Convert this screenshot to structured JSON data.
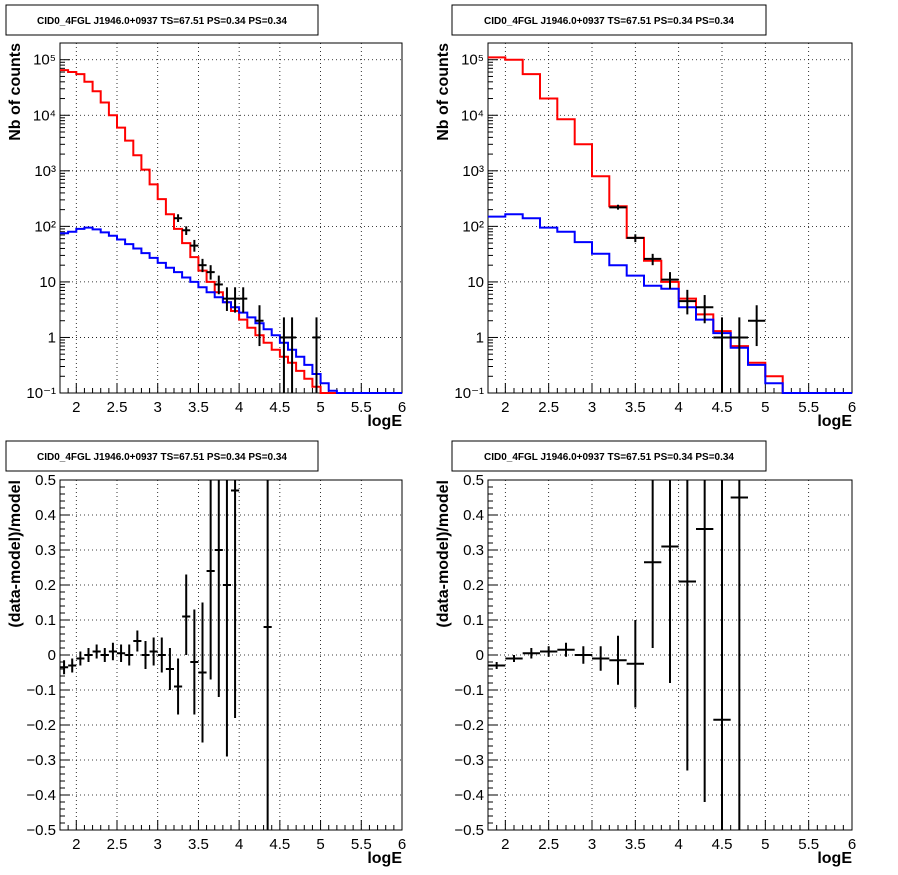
{
  "chart_data": [
    {
      "type": "histogram",
      "title": "CID0_4FGL J1946.0+0937 TS=67.51 PS=0.34 PS=0.34",
      "xlabel": "logE",
      "ylabel": "Nb of counts",
      "xlim": [
        1.8,
        6.0
      ],
      "ylim": [
        0.1,
        200000
      ],
      "yscale": "log",
      "grid": true,
      "xticks": [
        "2",
        "2.5",
        "3",
        "3.5",
        "4",
        "4.5",
        "5",
        "5.5",
        "6"
      ],
      "yticks": [
        "10^-1",
        "1",
        "10",
        "10^2",
        "10^3",
        "10^4",
        "10^5"
      ],
      "bin_edges": [
        1.8,
        1.9,
        2.0,
        2.1,
        2.2,
        2.3,
        2.4,
        2.5,
        2.6,
        2.7,
        2.8,
        2.9,
        3.0,
        3.1,
        3.2,
        3.3,
        3.4,
        3.5,
        3.6,
        3.7,
        3.8,
        3.9,
        4.0,
        4.1,
        4.2,
        4.3,
        4.4,
        4.5,
        4.6,
        4.7,
        4.8,
        4.9,
        5.0,
        5.1,
        5.2,
        5.3,
        5.4,
        5.5,
        5.6,
        5.7,
        5.8,
        5.9,
        6.0
      ],
      "series": [
        {
          "color": "#ff0000",
          "style": "step",
          "values": [
            65000,
            60000,
            55000,
            40000,
            27000,
            17000,
            10000,
            6000,
            3500,
            1900,
            1050,
            570,
            310,
            165,
            90,
            50,
            28,
            16,
            10,
            6.5,
            4.3,
            3.0,
            2.1,
            1.5,
            1.1,
            0.8,
            0.6,
            0.45,
            0.35,
            0.25,
            0.18,
            0.13,
            0.1,
            0.1,
            0.1,
            0.1,
            0.1,
            0.1,
            0.1,
            0.1,
            0.1,
            0.1
          ]
        },
        {
          "color": "#0000ff",
          "style": "step",
          "values": [
            75,
            80,
            90,
            95,
            88,
            78,
            68,
            58,
            48,
            40,
            33,
            27,
            22,
            18,
            15,
            12,
            10,
            8,
            6.5,
            5.3,
            4.3,
            3.5,
            2.8,
            2.3,
            1.8,
            1.4,
            1.1,
            0.8,
            0.6,
            0.45,
            0.32,
            0.22,
            0.15,
            0.11,
            0.1,
            0.1,
            0.1,
            0.1,
            0.1,
            0.1,
            0.1,
            0.1
          ]
        },
        {
          "color": "#000000",
          "style": "errorbars",
          "points": [
            {
              "x": 3.25,
              "y": 140,
              "ylo": 120,
              "yhi": 165
            },
            {
              "x": 3.35,
              "y": 85,
              "ylo": 70,
              "yhi": 100
            },
            {
              "x": 3.45,
              "y": 45,
              "ylo": 35,
              "yhi": 57
            },
            {
              "x": 3.55,
              "y": 20,
              "ylo": 15,
              "yhi": 26
            },
            {
              "x": 3.65,
              "y": 15,
              "ylo": 11,
              "yhi": 20
            },
            {
              "x": 3.75,
              "y": 9,
              "ylo": 6,
              "yhi": 13
            },
            {
              "x": 3.85,
              "y": 5,
              "ylo": 3,
              "yhi": 8
            },
            {
              "x": 3.95,
              "y": 5,
              "ylo": 2.8,
              "yhi": 8
            },
            {
              "x": 4.05,
              "y": 5,
              "ylo": 2.8,
              "yhi": 8
            },
            {
              "x": 4.25,
              "y": 2,
              "ylo": 0.7,
              "yhi": 3.8
            },
            {
              "x": 4.55,
              "y": 1,
              "ylo": 0.1,
              "yhi": 2.3
            },
            {
              "x": 4.65,
              "y": 1,
              "ylo": 0.1,
              "yhi": 2.3
            },
            {
              "x": 4.95,
              "y": 1,
              "ylo": 0.1,
              "yhi": 2.3
            }
          ]
        }
      ]
    },
    {
      "type": "histogram",
      "title": "CID0_4FGL J1946.0+0937 TS=67.51 PS=0.34 PS=0.34",
      "xlabel": "logE",
      "ylabel": "Nb of counts",
      "xlim": [
        1.8,
        6.0
      ],
      "ylim": [
        0.1,
        200000
      ],
      "yscale": "log",
      "grid": true,
      "xticks": [
        "2",
        "2.5",
        "3",
        "3.5",
        "4",
        "4.5",
        "5",
        "5.5",
        "6"
      ],
      "yticks": [
        "10^-1",
        "1",
        "10",
        "10^2",
        "10^3",
        "10^4",
        "10^5"
      ],
      "bin_edges": [
        1.8,
        2.0,
        2.2,
        2.4,
        2.6,
        2.8,
        3.0,
        3.2,
        3.4,
        3.6,
        3.8,
        4.0,
        4.2,
        4.4,
        4.6,
        4.8,
        5.0,
        5.2,
        5.4,
        5.6,
        5.8,
        6.0
      ],
      "series": [
        {
          "color": "#ff0000",
          "style": "step",
          "values": [
            110000,
            100000,
            55000,
            20000,
            8500,
            3000,
            800,
            230,
            62,
            24,
            10,
            5,
            2.6,
            1.3,
            0.7,
            0.35,
            0.2,
            0.1,
            0.1,
            0.1,
            0.1
          ]
        },
        {
          "color": "#0000ff",
          "style": "step",
          "values": [
            150,
            165,
            140,
            95,
            80,
            52,
            32,
            20,
            13,
            8.5,
            7.5,
            3.5,
            2.1,
            1.2,
            0.65,
            0.32,
            0.15,
            0.1,
            0.1,
            0.1,
            0.1
          ]
        },
        {
          "color": "#000000",
          "style": "errorbars",
          "points": [
            {
              "x": 3.3,
              "y": 220,
              "ylo": 200,
              "yhi": 245
            },
            {
              "x": 3.5,
              "y": 62,
              "ylo": 52,
              "yhi": 72
            },
            {
              "x": 3.7,
              "y": 26,
              "ylo": 20,
              "yhi": 32
            },
            {
              "x": 3.9,
              "y": 11,
              "ylo": 7.5,
              "yhi": 15
            },
            {
              "x": 4.1,
              "y": 4.5,
              "ylo": 2.6,
              "yhi": 7.2
            },
            {
              "x": 4.3,
              "y": 3.5,
              "ylo": 1.8,
              "yhi": 5.8
            },
            {
              "x": 4.5,
              "y": 1,
              "ylo": 0.1,
              "yhi": 2.3
            },
            {
              "x": 4.7,
              "y": 1,
              "ylo": 0.1,
              "yhi": 2.3
            },
            {
              "x": 4.9,
              "y": 2,
              "ylo": 0.7,
              "yhi": 3.8
            }
          ]
        }
      ]
    },
    {
      "type": "errorbar",
      "title": "CID0_4FGL J1946.0+0937 TS=67.51 PS=0.34 PS=0.34",
      "xlabel": "logE",
      "ylabel": "(data-model)/model",
      "xlim": [
        1.8,
        6.0
      ],
      "ylim": [
        -0.5,
        0.5
      ],
      "grid": true,
      "xticks": [
        "2",
        "2.5",
        "3",
        "3.5",
        "4",
        "4.5",
        "5",
        "5.5",
        "6"
      ],
      "yticks": [
        "-0.5",
        "-0.4",
        "-0.3",
        "-0.2",
        "-0.1",
        "0",
        "0.1",
        "0.2",
        "0.3",
        "0.4",
        "0.5"
      ],
      "points": [
        {
          "x": 1.85,
          "xerr": 0.05,
          "y": -0.035,
          "ylo": -0.055,
          "yhi": -0.015
        },
        {
          "x": 1.95,
          "xerr": 0.05,
          "y": -0.03,
          "ylo": -0.05,
          "yhi": -0.01
        },
        {
          "x": 2.05,
          "xerr": 0.05,
          "y": -0.01,
          "ylo": -0.03,
          "yhi": 0.01
        },
        {
          "x": 2.15,
          "xerr": 0.05,
          "y": 0.0,
          "ylo": -0.02,
          "yhi": 0.02
        },
        {
          "x": 2.25,
          "xerr": 0.05,
          "y": 0.01,
          "ylo": -0.01,
          "yhi": 0.03
        },
        {
          "x": 2.35,
          "xerr": 0.05,
          "y": 0.0,
          "ylo": -0.02,
          "yhi": 0.02
        },
        {
          "x": 2.45,
          "xerr": 0.05,
          "y": 0.01,
          "ylo": -0.015,
          "yhi": 0.035
        },
        {
          "x": 2.55,
          "xerr": 0.05,
          "y": 0.005,
          "ylo": -0.02,
          "yhi": 0.03
        },
        {
          "x": 2.65,
          "xerr": 0.05,
          "y": 0.0,
          "ylo": -0.03,
          "yhi": 0.03
        },
        {
          "x": 2.75,
          "xerr": 0.05,
          "y": 0.04,
          "ylo": 0.01,
          "yhi": 0.07
        },
        {
          "x": 2.85,
          "xerr": 0.05,
          "y": 0.0,
          "ylo": -0.04,
          "yhi": 0.04
        },
        {
          "x": 2.95,
          "xerr": 0.05,
          "y": 0.01,
          "ylo": -0.03,
          "yhi": 0.05
        },
        {
          "x": 3.05,
          "xerr": 0.05,
          "y": 0.0,
          "ylo": -0.05,
          "yhi": 0.05
        },
        {
          "x": 3.15,
          "xerr": 0.05,
          "y": -0.04,
          "ylo": -0.1,
          "yhi": 0.02
        },
        {
          "x": 3.25,
          "xerr": 0.05,
          "y": -0.09,
          "ylo": -0.17,
          "yhi": -0.01
        },
        {
          "x": 3.35,
          "xerr": 0.05,
          "y": 0.11,
          "ylo": 0.0,
          "yhi": 0.23
        },
        {
          "x": 3.45,
          "xerr": 0.05,
          "y": -0.02,
          "ylo": -0.17,
          "yhi": 0.13
        },
        {
          "x": 3.55,
          "xerr": 0.05,
          "y": -0.05,
          "ylo": -0.25,
          "yhi": 0.15
        },
        {
          "x": 3.65,
          "xerr": 0.05,
          "y": 0.24,
          "ylo": -0.07,
          "yhi": 0.5
        },
        {
          "x": 3.75,
          "xerr": 0.05,
          "y": 0.3,
          "ylo": -0.12,
          "yhi": 0.5
        },
        {
          "x": 3.85,
          "xerr": 0.05,
          "y": 0.2,
          "ylo": -0.29,
          "yhi": 0.5
        },
        {
          "x": 3.95,
          "xerr": 0.05,
          "y": 0.47,
          "ylo": -0.18,
          "yhi": 0.5
        },
        {
          "x": 4.35,
          "xerr": 0.05,
          "y": 0.08,
          "ylo": -0.5,
          "yhi": 0.5
        }
      ]
    },
    {
      "type": "errorbar",
      "title": "CID0_4FGL J1946.0+0937 TS=67.51 PS=0.34 PS=0.34",
      "xlabel": "logE",
      "ylabel": "(data-model)/model",
      "xlim": [
        1.8,
        6.0
      ],
      "ylim": [
        -0.5,
        0.5
      ],
      "grid": true,
      "xticks": [
        "2",
        "2.5",
        "3",
        "3.5",
        "4",
        "4.5",
        "5",
        "5.5",
        "6"
      ],
      "yticks": [
        "-0.5",
        "-0.4",
        "-0.3",
        "-0.2",
        "-0.1",
        "0",
        "0.1",
        "0.2",
        "0.3",
        "0.4",
        "0.5"
      ],
      "points": [
        {
          "x": 1.9,
          "xerr": 0.1,
          "y": -0.03,
          "ylo": -0.04,
          "yhi": -0.02
        },
        {
          "x": 2.1,
          "xerr": 0.1,
          "y": -0.01,
          "ylo": -0.02,
          "yhi": 0.0
        },
        {
          "x": 2.3,
          "xerr": 0.1,
          "y": 0.005,
          "ylo": -0.01,
          "yhi": 0.02
        },
        {
          "x": 2.5,
          "xerr": 0.1,
          "y": 0.01,
          "ylo": -0.005,
          "yhi": 0.025
        },
        {
          "x": 2.7,
          "xerr": 0.1,
          "y": 0.015,
          "ylo": -0.005,
          "yhi": 0.035
        },
        {
          "x": 2.9,
          "xerr": 0.1,
          "y": 0.0,
          "ylo": -0.025,
          "yhi": 0.025
        },
        {
          "x": 3.1,
          "xerr": 0.1,
          "y": -0.01,
          "ylo": -0.045,
          "yhi": 0.025
        },
        {
          "x": 3.3,
          "xerr": 0.1,
          "y": -0.015,
          "ylo": -0.085,
          "yhi": 0.055
        },
        {
          "x": 3.5,
          "xerr": 0.1,
          "y": -0.025,
          "ylo": -0.15,
          "yhi": 0.1
        },
        {
          "x": 3.7,
          "xerr": 0.1,
          "y": 0.265,
          "ylo": 0.02,
          "yhi": 0.5
        },
        {
          "x": 3.9,
          "xerr": 0.1,
          "y": 0.31,
          "ylo": -0.08,
          "yhi": 0.5
        },
        {
          "x": 4.1,
          "xerr": 0.1,
          "y": 0.21,
          "ylo": -0.33,
          "yhi": 0.5
        },
        {
          "x": 4.3,
          "xerr": 0.1,
          "y": 0.36,
          "ylo": -0.42,
          "yhi": 0.5
        },
        {
          "x": 4.5,
          "xerr": 0.1,
          "y": -0.185,
          "ylo": -0.5,
          "yhi": 0.5
        },
        {
          "x": 4.7,
          "xerr": 0.1,
          "y": 0.45,
          "ylo": -0.5,
          "yhi": 0.5
        }
      ]
    }
  ]
}
